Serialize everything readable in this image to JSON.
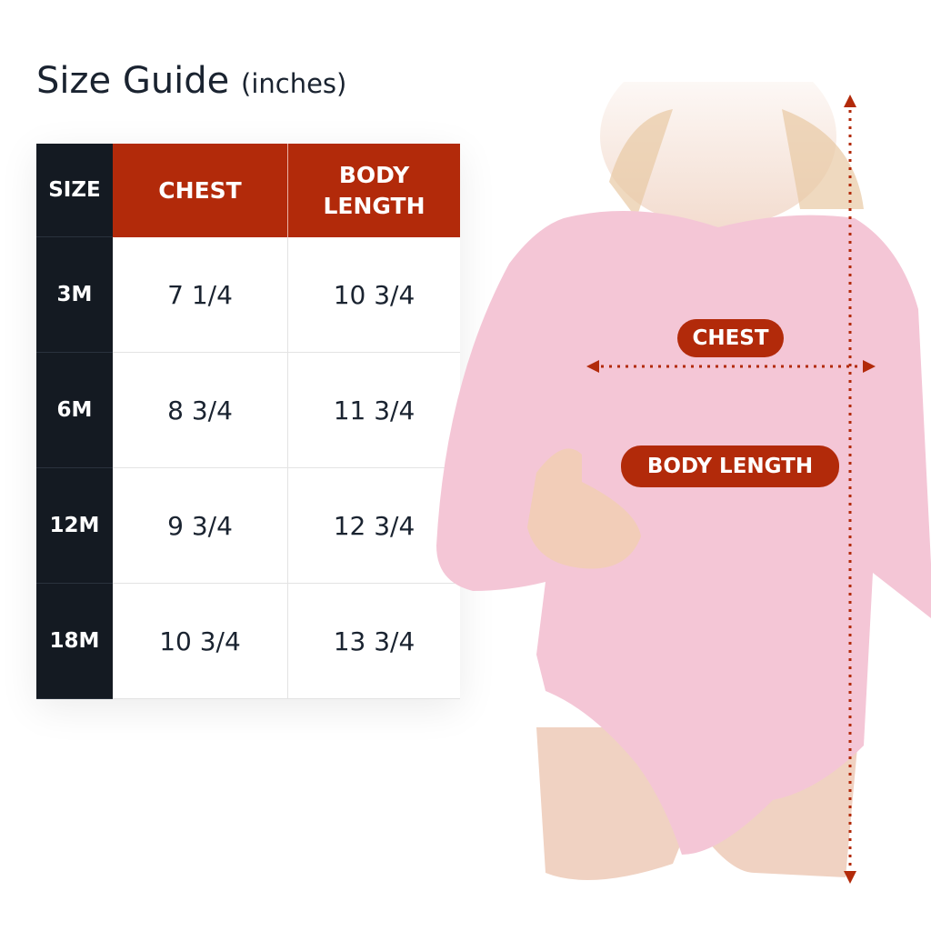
{
  "title": {
    "main": "Size Guide",
    "unit": "(inches)"
  },
  "table": {
    "headers": [
      "SIZE",
      "CHEST",
      "BODY\nLENGTH"
    ],
    "rows": [
      {
        "size": "3M",
        "chest": "7 1/4",
        "body_length": "10 3/4"
      },
      {
        "size": "6M",
        "chest": "8 3/4",
        "body_length": "11 3/4"
      },
      {
        "size": "12M",
        "chest": "9 3/4",
        "body_length": "12 3/4"
      },
      {
        "size": "18M",
        "chest": "10 3/4",
        "body_length": "13 3/4"
      }
    ]
  },
  "diagram": {
    "chest_label": "CHEST",
    "body_length_label": "BODY LENGTH"
  },
  "colors": {
    "accent": "#b22a0a",
    "dark": "#141a22",
    "garment": "#f4c6d6"
  }
}
